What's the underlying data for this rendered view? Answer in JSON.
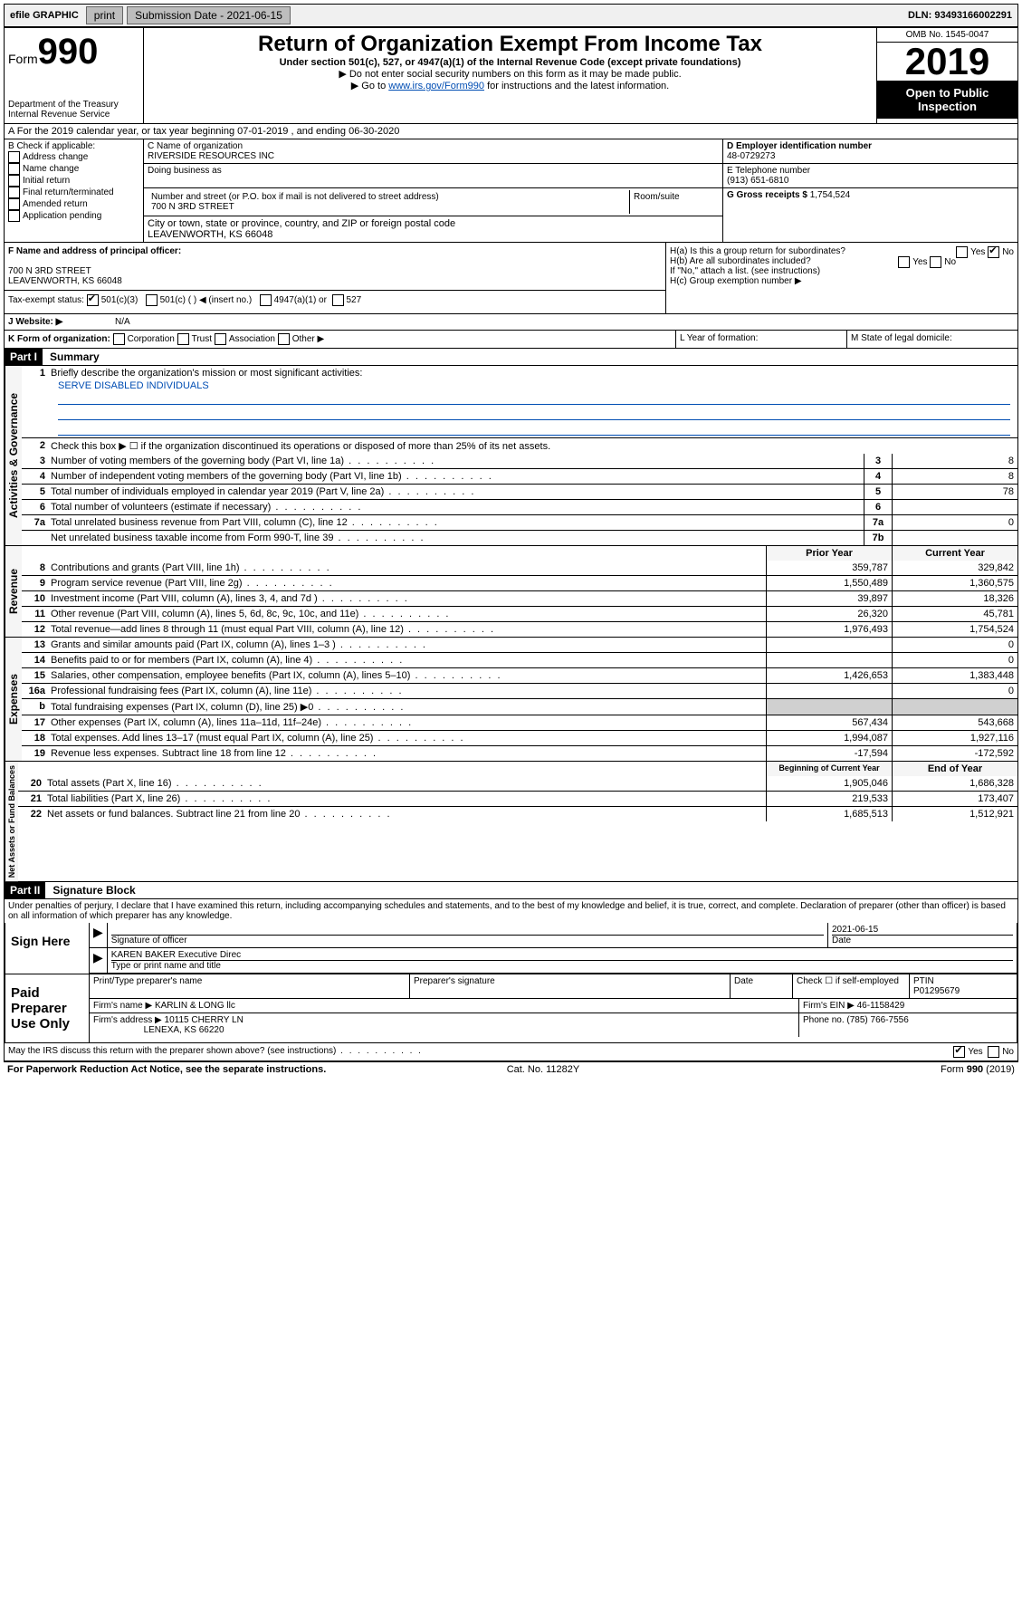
{
  "topbar": {
    "efile": "efile GRAPHIC",
    "print": "print",
    "subdate_label": "Submission Date - 2021-06-15",
    "dln": "DLN: 93493166002291"
  },
  "header": {
    "form_word": "Form",
    "form_num": "990",
    "dept": "Department of the Treasury\nInternal Revenue Service",
    "title": "Return of Organization Exempt From Income Tax",
    "sub1": "Under section 501(c), 527, or 4947(a)(1) of the Internal Revenue Code (except private foundations)",
    "sub2": "▶ Do not enter social security numbers on this form as it may be made public.",
    "sub3a": "▶ Go to ",
    "sub3link": "www.irs.gov/Form990",
    "sub3b": " for instructions and the latest information.",
    "omb": "OMB No. 1545-0047",
    "year": "2019",
    "open": "Open to Public Inspection"
  },
  "rowA": "A For the 2019 calendar year, or tax year beginning 07-01-2019    , and ending 06-30-2020",
  "boxB": {
    "label": "B Check if applicable:",
    "items": [
      "Address change",
      "Name change",
      "Initial return",
      "Final return/terminated",
      "Amended return",
      "Application pending"
    ]
  },
  "boxC": {
    "name_label": "C Name of organization",
    "name": "RIVERSIDE RESOURCES INC",
    "dba_label": "Doing business as",
    "addr_label": "Number and street (or P.O. box if mail is not delivered to street address)",
    "suite_label": "Room/suite",
    "addr": "700 N 3RD STREET",
    "city_label": "City or town, state or province, country, and ZIP or foreign postal code",
    "city": "LEAVENWORTH, KS  66048"
  },
  "boxD": {
    "label": "D Employer identification number",
    "val": "48-0729273"
  },
  "boxE": {
    "label": "E Telephone number",
    "val": "(913) 651-6810"
  },
  "boxG": {
    "label": "G Gross receipts $",
    "val": "1,754,524"
  },
  "boxF": {
    "label": "F Name and address of principal officer:",
    "addr1": "700 N 3RD STREET",
    "addr2": "LEAVENWORTH, KS  66048"
  },
  "boxH": {
    "ha": "H(a)  Is this a group return for subordinates?",
    "hb": "H(b)  Are all subordinates included?",
    "hbnote": "If \"No,\" attach a list. (see instructions)",
    "hc": "H(c)  Group exemption number ▶",
    "yes": "Yes",
    "no": "No"
  },
  "taxstatus": {
    "label": "Tax-exempt status:",
    "c3": "501(c)(3)",
    "c": "501(c) (  ) ◀ (insert no.)",
    "a1": "4947(a)(1) or",
    "527": "527"
  },
  "rowJ": {
    "label": "J   Website: ▶",
    "val": "N/A"
  },
  "rowK": {
    "label": "K Form of organization:",
    "opts": [
      "Corporation",
      "Trust",
      "Association",
      "Other ▶"
    ],
    "l": "L Year of formation:",
    "m": "M State of legal domicile:"
  },
  "part1": {
    "hdr": "Part I",
    "title": "Summary",
    "q1": "Briefly describe the organization's mission or most significant activities:",
    "mission": "SERVE DISABLED INDIVIDUALS",
    "q2": "Check this box ▶ ☐  if the organization discontinued its operations or disposed of more than 25% of its net assets.",
    "lines_gov": [
      {
        "n": "3",
        "d": "Number of voting members of the governing body (Part VI, line 1a)",
        "c": "3",
        "v": "8"
      },
      {
        "n": "4",
        "d": "Number of independent voting members of the governing body (Part VI, line 1b)",
        "c": "4",
        "v": "8"
      },
      {
        "n": "5",
        "d": "Total number of individuals employed in calendar year 2019 (Part V, line 2a)",
        "c": "5",
        "v": "78"
      },
      {
        "n": "6",
        "d": "Total number of volunteers (estimate if necessary)",
        "c": "6",
        "v": ""
      },
      {
        "n": "7a",
        "d": "Total unrelated business revenue from Part VIII, column (C), line 12",
        "c": "7a",
        "v": "0"
      },
      {
        "n": "",
        "d": "Net unrelated business taxable income from Form 990-T, line 39",
        "c": "7b",
        "v": ""
      }
    ],
    "col_prior": "Prior Year",
    "col_curr": "Current Year",
    "lines_rev": [
      {
        "n": "8",
        "d": "Contributions and grants (Part VIII, line 1h)",
        "p": "359,787",
        "c": "329,842"
      },
      {
        "n": "9",
        "d": "Program service revenue (Part VIII, line 2g)",
        "p": "1,550,489",
        "c": "1,360,575"
      },
      {
        "n": "10",
        "d": "Investment income (Part VIII, column (A), lines 3, 4, and 7d )",
        "p": "39,897",
        "c": "18,326"
      },
      {
        "n": "11",
        "d": "Other revenue (Part VIII, column (A), lines 5, 6d, 8c, 9c, 10c, and 11e)",
        "p": "26,320",
        "c": "45,781"
      },
      {
        "n": "12",
        "d": "Total revenue—add lines 8 through 11 (must equal Part VIII, column (A), line 12)",
        "p": "1,976,493",
        "c": "1,754,524"
      }
    ],
    "lines_exp": [
      {
        "n": "13",
        "d": "Grants and similar amounts paid (Part IX, column (A), lines 1–3 )",
        "p": "",
        "c": "0"
      },
      {
        "n": "14",
        "d": "Benefits paid to or for members (Part IX, column (A), line 4)",
        "p": "",
        "c": "0"
      },
      {
        "n": "15",
        "d": "Salaries, other compensation, employee benefits (Part IX, column (A), lines 5–10)",
        "p": "1,426,653",
        "c": "1,383,448"
      },
      {
        "n": "16a",
        "d": "Professional fundraising fees (Part IX, column (A), line 11e)",
        "p": "",
        "c": "0"
      },
      {
        "n": "b",
        "d": "Total fundraising expenses (Part IX, column (D), line 25) ▶0",
        "p": "grey",
        "c": "grey"
      },
      {
        "n": "17",
        "d": "Other expenses (Part IX, column (A), lines 11a–11d, 11f–24e)",
        "p": "567,434",
        "c": "543,668"
      },
      {
        "n": "18",
        "d": "Total expenses. Add lines 13–17 (must equal Part IX, column (A), line 25)",
        "p": "1,994,087",
        "c": "1,927,116"
      },
      {
        "n": "19",
        "d": "Revenue less expenses. Subtract line 18 from line 12",
        "p": "-17,594",
        "c": "-172,592"
      }
    ],
    "col_beg": "Beginning of Current Year",
    "col_end": "End of Year",
    "lines_net": [
      {
        "n": "20",
        "d": "Total assets (Part X, line 16)",
        "p": "1,905,046",
        "c": "1,686,328"
      },
      {
        "n": "21",
        "d": "Total liabilities (Part X, line 26)",
        "p": "219,533",
        "c": "173,407"
      },
      {
        "n": "22",
        "d": "Net assets or fund balances. Subtract line 21 from line 20",
        "p": "1,685,513",
        "c": "1,512,921"
      }
    ],
    "vlabels": {
      "gov": "Activities & Governance",
      "rev": "Revenue",
      "exp": "Expenses",
      "net": "Net Assets or Fund Balances"
    }
  },
  "part2": {
    "hdr": "Part II",
    "title": "Signature Block",
    "perjury": "Under penalties of perjury, I declare that I have examined this return, including accompanying schedules and statements, and to the best of my knowledge and belief, it is true, correct, and complete. Declaration of preparer (other than officer) is based on all information of which preparer has any knowledge.",
    "sign_here": "Sign Here",
    "sig_officer": "Signature of officer",
    "date": "Date",
    "date_val": "2021-06-15",
    "name_title": "KAREN BAKER  Executive Direc",
    "type_label": "Type or print name and title",
    "paid": "Paid Preparer Use Only",
    "prep_name_label": "Print/Type preparer's name",
    "prep_sig_label": "Preparer's signature",
    "check_self": "Check ☐ if self-employed",
    "ptin_label": "PTIN",
    "ptin": "P01295679",
    "firm_name_label": "Firm's name   ▶",
    "firm_name": "KARLIN & LONG llc",
    "firm_ein_label": "Firm's EIN ▶",
    "firm_ein": "46-1158429",
    "firm_addr_label": "Firm's address ▶",
    "firm_addr1": "10115 CHERRY LN",
    "firm_addr2": "LENEXA, KS  66220",
    "phone_label": "Phone no.",
    "phone": "(785) 766-7556",
    "discuss": "May the IRS discuss this return with the preparer shown above? (see instructions)",
    "yes": "Yes",
    "no": "No"
  },
  "footer": {
    "pra": "For Paperwork Reduction Act Notice, see the separate instructions.",
    "cat": "Cat. No. 11282Y",
    "form": "Form 990 (2019)"
  }
}
